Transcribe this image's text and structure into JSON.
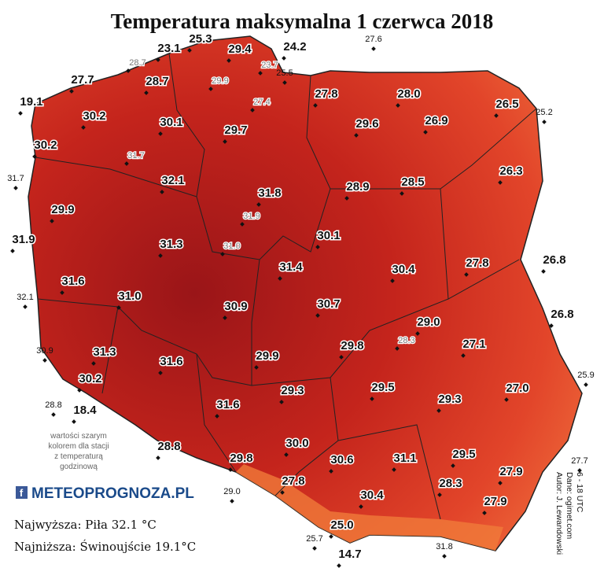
{
  "title": "Temperatura maksymalna 1 czerwca 2018",
  "stations": [
    "23.1",
    "25.3",
    "29.4",
    "24.2",
    "27.7",
    "28.7",
    "19.1",
    "27.8",
    "28.0",
    "26.5",
    "30.2",
    "30.1",
    "29.7",
    "29.6",
    "26.9",
    "30.2",
    "32.1",
    "31.8",
    "28.9",
    "28.5",
    "26.3",
    "29.9",
    "31.9",
    "31.3",
    "30.1",
    "31.4",
    "30.4",
    "27.8",
    "26.8",
    "31.6",
    "31.0",
    "30.9",
    "30.7",
    "29.0",
    "26.8",
    "29.8",
    "27.1",
    "29.9",
    "31.3",
    "31.6",
    "30.2",
    "29.3",
    "29.5",
    "29.3",
    "27.0",
    "18.4",
    "31.6",
    "28.8",
    "30.0",
    "29.8",
    "30.6",
    "31.1",
    "29.5",
    "27.9",
    "28.3",
    "27.8",
    "30.4",
    "27.9",
    "25.0",
    "14.7"
  ],
  "outer_stations": [
    "27.6",
    "25.5",
    "25.2",
    "31.7",
    "32.1",
    "30.9",
    "28.8",
    "25.9",
    "27.7",
    "29.0",
    "25.7",
    "31.8"
  ],
  "hourly_stations": [
    "28.7",
    "23.7",
    "29.9",
    "27.4",
    "31.7",
    "31.9",
    "31.0",
    "28.3"
  ],
  "note": [
    "wartości szarym",
    "kolorem dla stacji",
    "z temperaturą",
    "godzinową"
  ],
  "logo": "METEOPROGNOZA.PL",
  "highest": "Najwyższa: Piła 32.1 °C",
  "lowest": "Najniższa: Świnoujście 19.1°C",
  "credits": [
    "Autor: J. Lewandowski",
    "Dane: ogimet.com",
    "6 - 18 UTC"
  ]
}
